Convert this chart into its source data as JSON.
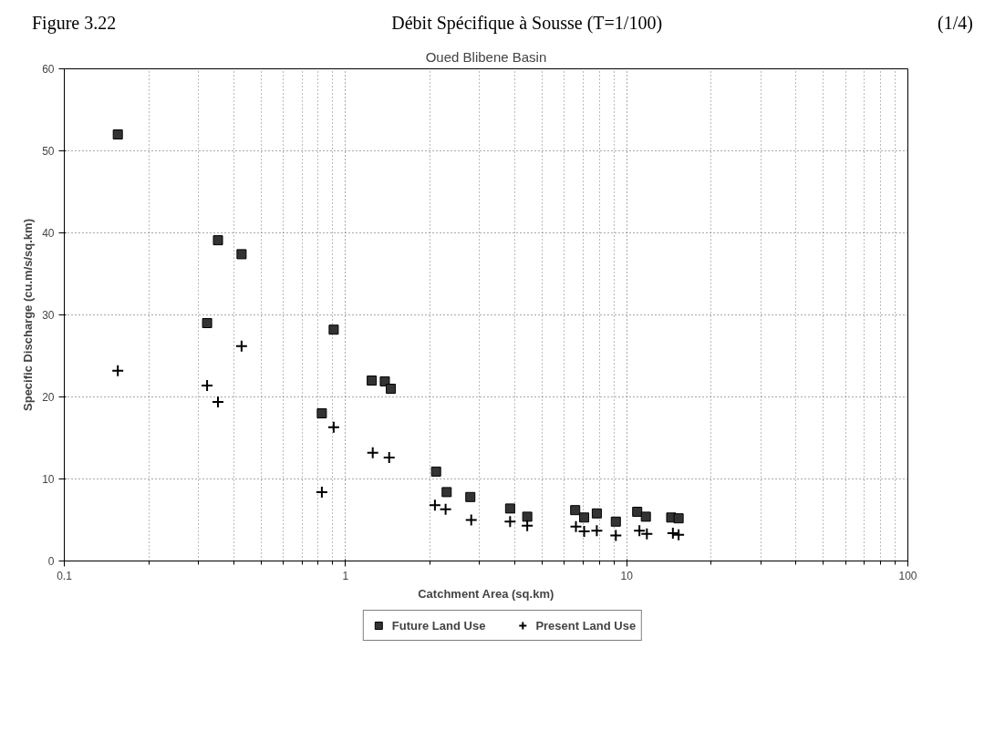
{
  "chart_data": {
    "type": "scatter",
    "title": "Débit Spécifique à Sousse (T=1/100)",
    "subtitle": "Oued Blibene Basin",
    "xlabel": "Catchment Area (sq.km)",
    "ylabel": "Specific Discharge (cu.m/s/sq.km)",
    "annotations": [
      "Figure 3.22",
      "(1/4)"
    ],
    "log": "x",
    "xlim": [
      0.1,
      100
    ],
    "ylim": [
      0,
      60
    ],
    "xticks": [
      0.1,
      {
        "value": 0.2,
        "label": null
      },
      {
        "value": 0.3,
        "label": null
      },
      {
        "value": 0.4,
        "label": null
      },
      {
        "value": 0.5,
        "label": null
      },
      {
        "value": 0.6,
        "label": null
      },
      {
        "value": 0.7,
        "label": null
      },
      {
        "value": 0.8,
        "label": null
      },
      {
        "value": 0.9,
        "label": null
      },
      1,
      {
        "value": 2,
        "label": null
      },
      {
        "value": 3,
        "label": null
      },
      {
        "value": 4,
        "label": null
      },
      {
        "value": 5,
        "label": null
      },
      {
        "value": 6,
        "label": null
      },
      {
        "value": 7,
        "label": null
      },
      {
        "value": 8,
        "label": null
      },
      {
        "value": 9,
        "label": null
      },
      10,
      {
        "value": 20,
        "label": null
      },
      {
        "value": 30,
        "label": null
      },
      {
        "value": 40,
        "label": null
      },
      {
        "value": 50,
        "label": null
      },
      {
        "value": 60,
        "label": null
      },
      {
        "value": 70,
        "label": null
      },
      {
        "value": 80,
        "label": null
      },
      {
        "value": 90,
        "label": null
      },
      100
    ],
    "yticks": [
      0,
      10,
      20,
      30,
      40,
      50,
      60
    ],
    "grid": true,
    "legend": "bottom",
    "series": [
      {
        "name": "Future Land Use",
        "color": "#333333",
        "marker": "square",
        "x": [
          0.155,
          0.322,
          0.352,
          0.427,
          0.824,
          0.908,
          1.24,
          1.38,
          1.45,
          2.1,
          2.29,
          2.78,
          3.85,
          4.43,
          6.56,
          7.06,
          7.83,
          9.15,
          10.9,
          11.7,
          14.4,
          15.3
        ],
        "values": [
          52,
          29,
          39.1,
          37.4,
          18,
          28.2,
          22,
          21.9,
          21,
          10.9,
          8.4,
          7.8,
          6.4,
          5.4,
          6.2,
          5.3,
          5.8,
          4.8,
          6,
          5.4,
          5.3,
          5.2
        ]
      },
      {
        "name": "Present Land Use",
        "color": "#000000",
        "marker": "cross",
        "x": [
          0.155,
          0.322,
          0.352,
          0.427,
          0.824,
          0.908,
          1.25,
          1.43,
          2.08,
          2.27,
          2.8,
          3.85,
          4.43,
          6.6,
          7.06,
          7.83,
          9.15,
          11.1,
          11.8,
          14.6,
          15.3
        ],
        "values": [
          23.2,
          21.4,
          19.4,
          26.2,
          8.4,
          16.3,
          13.2,
          12.6,
          6.8,
          6.3,
          5,
          4.8,
          4.3,
          4.2,
          3.6,
          3.7,
          3.1,
          3.7,
          3.3,
          3.4,
          3.2
        ]
      }
    ]
  }
}
